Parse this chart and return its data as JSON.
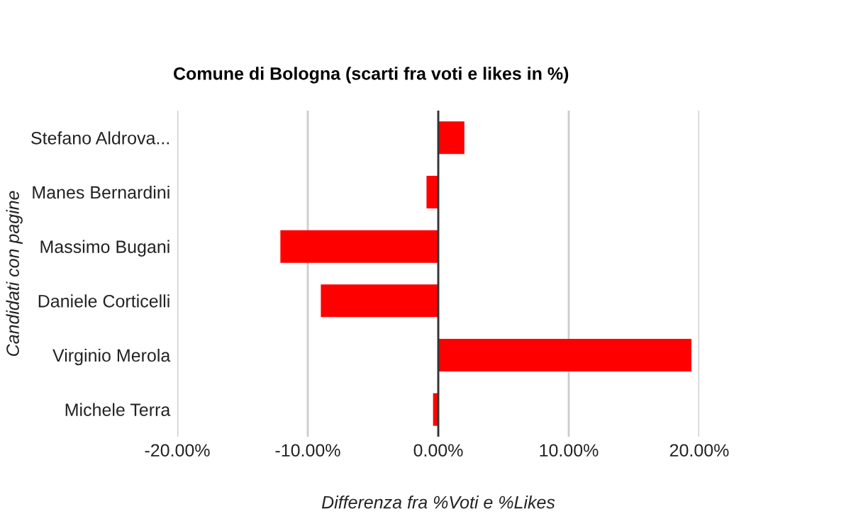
{
  "chart_data": {
    "type": "bar",
    "orientation": "horizontal",
    "title": "Comune di Bologna (scarti fra voti e likes in %)",
    "xlabel": "Differenza fra %Voti e %Likes",
    "ylabel": "Candidati con pagine",
    "categories": [
      "Stefano Aldrova...",
      "Manes Bernardini",
      "Massimo Bugani",
      "Daniele Corticelli",
      "Virginio Merola",
      "Michele Terra"
    ],
    "values": [
      2.0,
      -0.9,
      -12.1,
      -9.0,
      19.4,
      -0.4
    ],
    "color": "#ff0000",
    "xlim": [
      -20,
      20
    ],
    "xticks": [
      {
        "value": -20,
        "label": "-20.00%"
      },
      {
        "value": -10,
        "label": "-10.00%"
      },
      {
        "value": 0,
        "label": "0.00%"
      },
      {
        "value": 10,
        "label": "10.00%"
      },
      {
        "value": 20,
        "label": "20.00%"
      }
    ],
    "grid": "x",
    "legend": false
  }
}
